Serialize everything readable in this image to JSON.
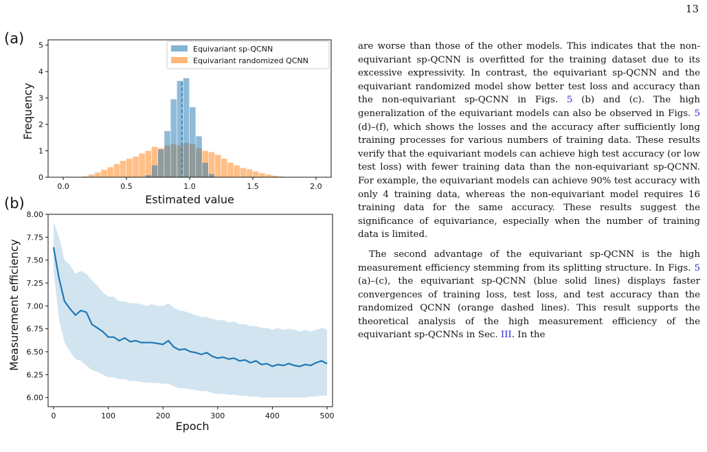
{
  "page_number": "13",
  "figure": {
    "panel_a_label": "(a)",
    "panel_b_label": "(b)",
    "panel_a": {
      "xlabel": "Estimated value",
      "ylabel": "Frequency",
      "x_ticks": [
        "0.0",
        "0.5",
        "1.0",
        "1.5",
        "2.0"
      ],
      "y_ticks": [
        "0",
        "1",
        "2",
        "3",
        "4",
        "5"
      ],
      "legend": [
        "Equivariant sp-QCNN",
        "Equivariant randomized QCNN"
      ],
      "colors": {
        "blue": "#1f77b4",
        "orange": "#ff7f0e"
      }
    },
    "panel_b": {
      "xlabel": "Epoch",
      "ylabel": "Measurement efficiency",
      "x_ticks": [
        "0",
        "100",
        "200",
        "300",
        "400",
        "500"
      ],
      "y_ticks": [
        "6.00",
        "6.25",
        "6.50",
        "6.75",
        "7.00",
        "7.25",
        "7.50",
        "7.75",
        "8.00"
      ]
    }
  },
  "chart_data": [
    {
      "type": "bar",
      "panel": "(a)",
      "xlabel": "Estimated value",
      "ylabel": "Frequency",
      "xlim": [
        -0.12,
        2.12
      ],
      "ylim": [
        0,
        5.2
      ],
      "bin_width": 0.05,
      "vline_x": 0.94,
      "series": [
        {
          "name": "Equivariant sp-QCNN",
          "color": "#1f77b4",
          "x": [
            0.65,
            0.7,
            0.75,
            0.8,
            0.85,
            0.9,
            0.95,
            1.0,
            1.05,
            1.1,
            1.15
          ],
          "values": [
            0.08,
            0.45,
            1.05,
            1.75,
            2.95,
            3.65,
            3.75,
            2.65,
            1.55,
            0.55,
            0.12
          ]
        },
        {
          "name": "Equivariant randomized QCNN",
          "color": "#ff7f0e",
          "x": [
            0.15,
            0.2,
            0.25,
            0.3,
            0.35,
            0.4,
            0.45,
            0.5,
            0.55,
            0.6,
            0.65,
            0.7,
            0.75,
            0.8,
            0.85,
            0.9,
            0.95,
            1.0,
            1.05,
            1.1,
            1.15,
            1.2,
            1.25,
            1.3,
            1.35,
            1.4,
            1.45,
            1.5,
            1.55,
            1.6,
            1.65,
            1.7
          ],
          "values": [
            0.03,
            0.1,
            0.18,
            0.28,
            0.38,
            0.5,
            0.62,
            0.7,
            0.78,
            0.9,
            1.0,
            1.15,
            1.1,
            1.2,
            1.25,
            1.2,
            1.3,
            1.25,
            1.1,
            1.0,
            0.95,
            0.85,
            0.7,
            0.55,
            0.45,
            0.35,
            0.3,
            0.22,
            0.15,
            0.1,
            0.06,
            0.03
          ]
        }
      ],
      "legend": [
        "Equivariant sp-QCNN",
        "Equivariant randomized QCNN"
      ]
    },
    {
      "type": "line",
      "panel": "(b)",
      "xlabel": "Epoch",
      "ylabel": "Measurement efficiency",
      "xlim": [
        -10,
        510
      ],
      "ylim": [
        5.9,
        8.0
      ],
      "x": [
        0,
        10,
        20,
        30,
        40,
        50,
        60,
        70,
        80,
        90,
        100,
        110,
        120,
        130,
        140,
        150,
        160,
        170,
        180,
        190,
        200,
        210,
        220,
        230,
        240,
        250,
        260,
        270,
        280,
        290,
        300,
        310,
        320,
        330,
        340,
        350,
        360,
        370,
        380,
        390,
        400,
        410,
        420,
        430,
        440,
        450,
        460,
        470,
        480,
        490,
        500
      ],
      "series": [
        {
          "color": "#1f77b4",
          "values": [
            7.64,
            7.3,
            7.05,
            6.97,
            6.9,
            6.95,
            6.93,
            6.8,
            6.76,
            6.72,
            6.66,
            6.66,
            6.62,
            6.65,
            6.61,
            6.62,
            6.6,
            6.6,
            6.6,
            6.59,
            6.58,
            6.62,
            6.55,
            6.52,
            6.53,
            6.5,
            6.49,
            6.47,
            6.49,
            6.45,
            6.43,
            6.44,
            6.42,
            6.43,
            6.4,
            6.41,
            6.38,
            6.4,
            6.36,
            6.37,
            6.34,
            6.36,
            6.35,
            6.37,
            6.35,
            6.34,
            6.36,
            6.35,
            6.38,
            6.4,
            6.37
          ]
        },
        {
          "type": "band",
          "color": "#1f77b4",
          "lower": [
            7.38,
            6.85,
            6.6,
            6.5,
            6.42,
            6.4,
            6.35,
            6.3,
            6.28,
            6.25,
            6.22,
            6.22,
            6.2,
            6.2,
            6.18,
            6.18,
            6.17,
            6.16,
            6.16,
            6.16,
            6.15,
            6.15,
            6.12,
            6.1,
            6.1,
            6.09,
            6.08,
            6.07,
            6.07,
            6.05,
            6.04,
            6.04,
            6.03,
            6.03,
            6.02,
            6.02,
            6.01,
            6.01,
            6.0,
            6.0,
            6.0,
            6.0,
            6.0,
            6.0,
            6.0,
            6.0,
            6.0,
            6.01,
            6.01,
            6.02,
            6.02
          ],
          "upper": [
            7.92,
            7.75,
            7.5,
            7.45,
            7.35,
            7.38,
            7.35,
            7.28,
            7.22,
            7.15,
            7.1,
            7.1,
            7.05,
            7.05,
            7.03,
            7.03,
            7.02,
            7.0,
            7.02,
            7.0,
            7.0,
            7.03,
            6.98,
            6.95,
            6.94,
            6.92,
            6.9,
            6.88,
            6.88,
            6.86,
            6.84,
            6.85,
            6.82,
            6.83,
            6.8,
            6.8,
            6.78,
            6.78,
            6.76,
            6.76,
            6.74,
            6.76,
            6.74,
            6.75,
            6.74,
            6.72,
            6.74,
            6.72,
            6.74,
            6.76,
            6.74
          ]
        }
      ]
    }
  ],
  "text": {
    "p1_a": "are worse than those of the other models. This indicates that the non-equivariant sp-QCNN is overfitted for the training dataset due to its excessive expressivity. In contrast, the equivariant sp-QCNN and the equivariant randomized model show better test loss and accuracy than the non-equivariant sp-QCNN in Figs. ",
    "p1_ref1": "5",
    "p1_b": " (b) and (c). The high generalization of the equivariant models can also be observed in Figs. ",
    "p1_ref2": "5",
    "p1_c": " (d)–(f), which shows the losses and the accuracy after sufficiently long training processes for various numbers of training data. These results verify that the equivariant models can achieve high test accuracy (or low test loss) with fewer training data than the non-equivariant sp-QCNN. For example, the equivariant models can achieve 90% test accuracy with only 4 training data, whereas the non-equivariant model requires 16 training data for the same accuracy. These results suggest the significance of equivariance, especially when the number of training data is limited.",
    "p2_a": "The second advantage of the equivariant sp-QCNN is the high measurement efficiency stemming from its splitting structure. In Figs. ",
    "p2_ref1": "5",
    "p2_b": " (a)–(c), the equivariant sp-QCNN (blue solid lines) displays faster convergences of training loss, test loss, and test accuracy than the randomized QCNN (orange dashed lines). This result supports the theoretical analysis of the high measurement efficiency of the equivariant sp-QCNNs in Sec. ",
    "p2_ref2": "III",
    "p2_c": ". In the"
  }
}
